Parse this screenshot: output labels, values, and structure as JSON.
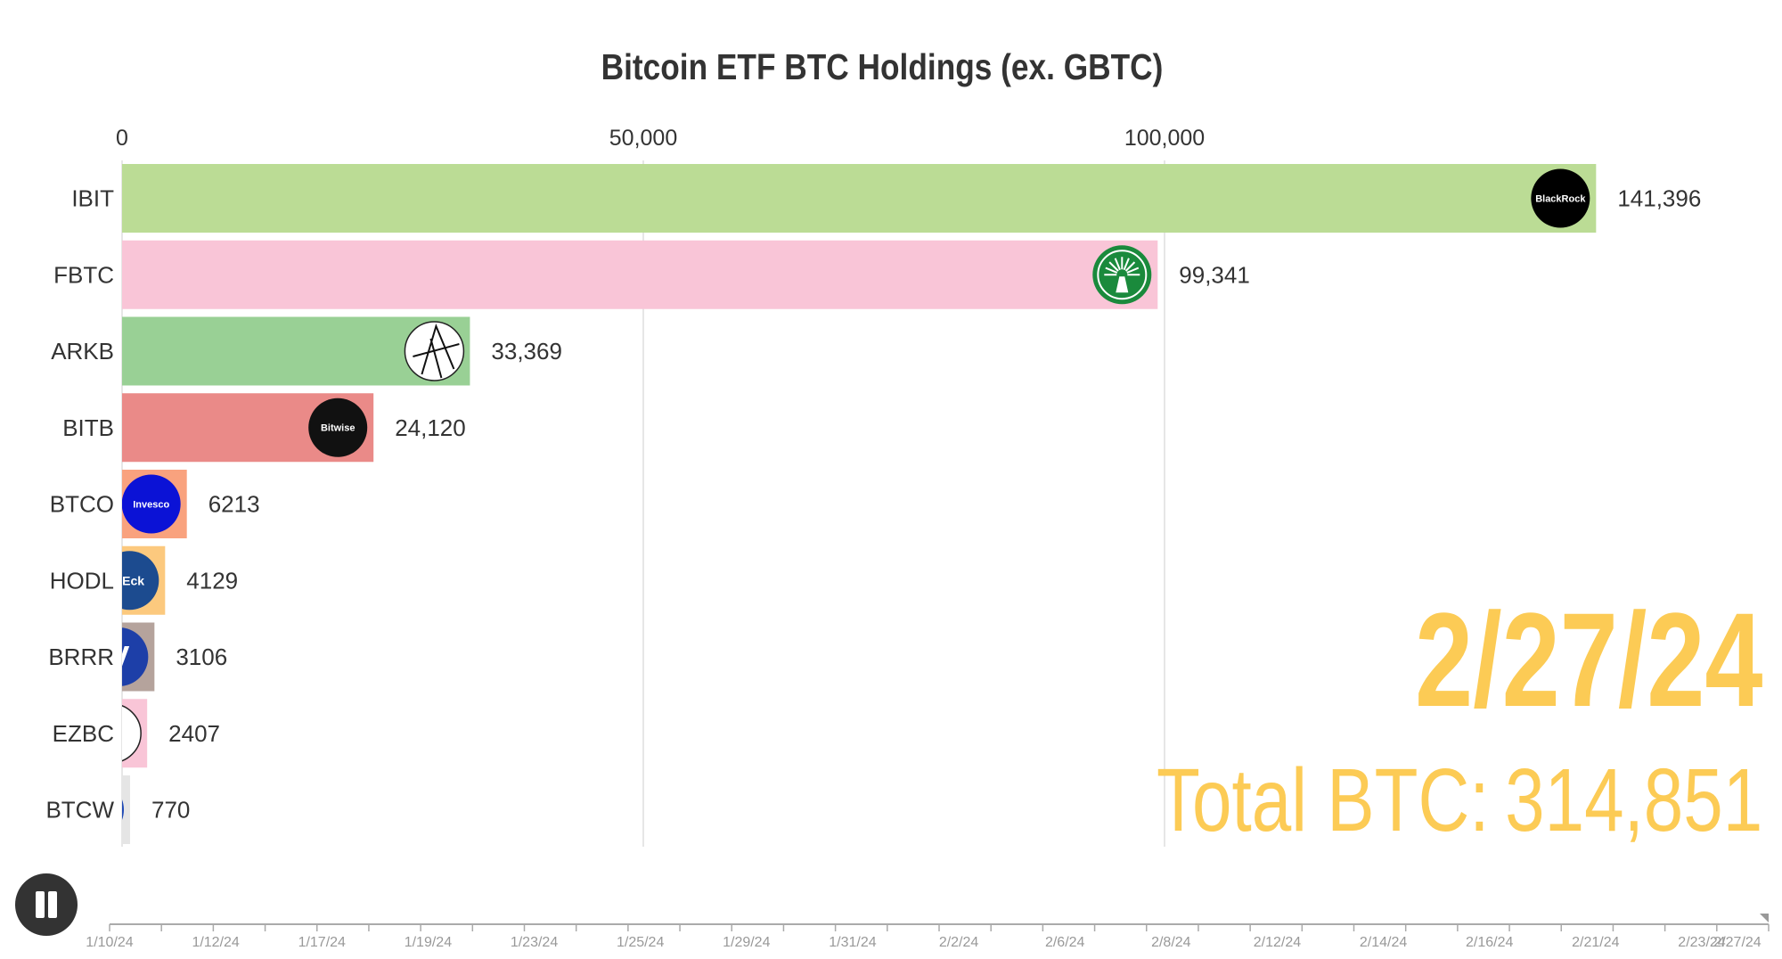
{
  "chart_data": {
    "type": "bar",
    "orientation": "horizontal",
    "title": "Bitcoin ETF BTC Holdings (ex. GBTC)",
    "xlim": [
      0,
      155000
    ],
    "x_ticks": [
      0,
      50000,
      100000
    ],
    "x_tick_labels": [
      "0",
      "50,000",
      "100,000"
    ],
    "grid": true,
    "categories": [
      "IBIT",
      "FBTC",
      "ARKB",
      "BITB",
      "BTCO",
      "HODL",
      "BRRR",
      "EZBC",
      "BTCW"
    ],
    "values": [
      141396,
      99341,
      33369,
      24120,
      6213,
      4129,
      3106,
      2407,
      770
    ],
    "value_labels": [
      "141,396",
      "99,341",
      "33,369",
      "24,120",
      "6213",
      "4129",
      "3106",
      "2407",
      "770"
    ],
    "bar_colors": [
      "#bbdc95",
      "#f9c5d7",
      "#99d095",
      "#ea8a88",
      "#f9a27e",
      "#fcc97e",
      "#b5a39c",
      "#f9c5d7",
      "#e5e5e5"
    ],
    "logos": [
      {
        "icon": "blackrock-logo-icon",
        "text": "BlackRock",
        "bg": "#000000",
        "fg": "#ffffff"
      },
      {
        "icon": "fidelity-logo-icon",
        "text": "",
        "bg": "#1a8a3c",
        "fg": "#ffffff"
      },
      {
        "icon": "ark-logo-icon",
        "text": "",
        "bg": "#ffffff",
        "fg": "#000000"
      },
      {
        "icon": "bitwise-logo-icon",
        "text": "Bitwise",
        "bg": "#111111",
        "fg": "#ffffff"
      },
      {
        "icon": "invesco-logo-icon",
        "text": "Invesco",
        "bg": "#0b12d6",
        "fg": "#ffffff"
      },
      {
        "icon": "vaneck-logo-icon",
        "text": "nEck",
        "bg": "#1c4b8f",
        "fg": "#ffffff"
      },
      {
        "icon": "valkyrie-logo-icon",
        "text": "V",
        "bg": "#1d3fa8",
        "fg": "#ffffff"
      },
      {
        "icon": "franklin-logo-icon",
        "text": "",
        "bg": "#ffffff",
        "fg": "#444444"
      },
      {
        "icon": "wisdomtree-logo-icon",
        "text": "",
        "bg": "#1e48b5",
        "fg": "#ffffff"
      }
    ],
    "current_date": "2/27/24",
    "total_label": "Total BTC:",
    "total_value": "314,851",
    "timeline": {
      "labels": [
        "1/10/24",
        "1/12/24",
        "1/17/24",
        "1/19/24",
        "1/23/24",
        "1/25/24",
        "1/29/24",
        "1/31/24",
        "2/2/24",
        "2/6/24",
        "2/8/24",
        "2/12/24",
        "2/14/24",
        "2/16/24",
        "2/21/24",
        "2/23/24",
        "2/27/24"
      ],
      "progress": 1.0
    }
  },
  "colors": {
    "accent": "#fccb55",
    "title": "#333333",
    "text": "#333333",
    "grid": "#dddddd"
  }
}
